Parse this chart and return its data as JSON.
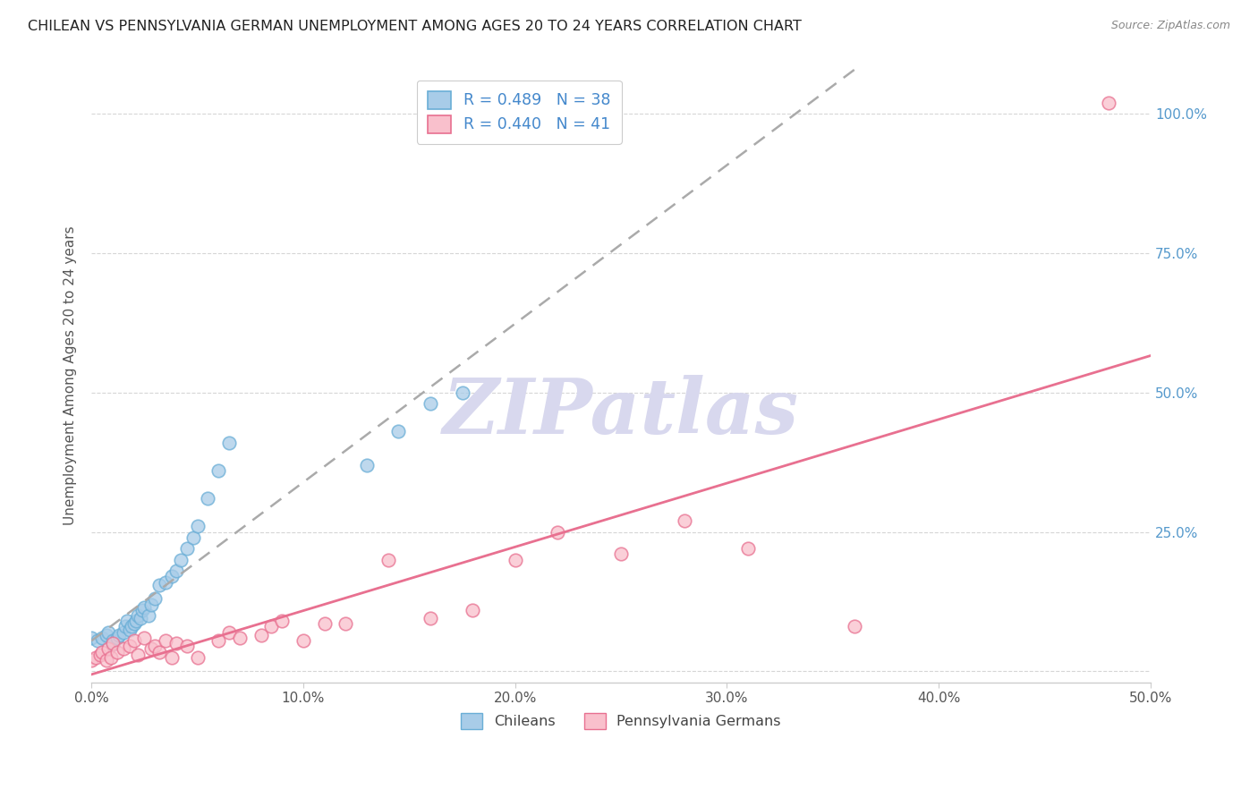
{
  "title": "CHILEAN VS PENNSYLVANIA GERMAN UNEMPLOYMENT AMONG AGES 20 TO 24 YEARS CORRELATION CHART",
  "source": "Source: ZipAtlas.com",
  "ylabel": "Unemployment Among Ages 20 to 24 years",
  "xlim": [
    0.0,
    0.5
  ],
  "ylim": [
    -0.02,
    1.08
  ],
  "xticks": [
    0.0,
    0.1,
    0.2,
    0.3,
    0.4,
    0.5
  ],
  "xtick_labels": [
    "0.0%",
    "10.0%",
    "20.0%",
    "30.0%",
    "40.0%",
    "50.0%"
  ],
  "yticks": [
    0.0,
    0.25,
    0.5,
    0.75,
    1.0
  ],
  "ytick_labels_right": [
    "",
    "25.0%",
    "50.0%",
    "75.0%",
    "100.0%"
  ],
  "legend_r1": "R = 0.489",
  "legend_n1": "N = 38",
  "legend_r2": "R = 0.440",
  "legend_n2": "N = 41",
  "color_chileans": "#a8cce8",
  "color_pennger": "#f9c0cc",
  "color_trendline_chileans": "#aaaaaa",
  "color_trendline_pennger": "#e87090",
  "watermark": "ZIPatlas",
  "watermark_color": "#d8d8ee",
  "chileans_x": [
    0.0,
    0.003,
    0.005,
    0.007,
    0.008,
    0.01,
    0.01,
    0.012,
    0.013,
    0.015,
    0.016,
    0.017,
    0.018,
    0.019,
    0.02,
    0.021,
    0.022,
    0.023,
    0.024,
    0.025,
    0.027,
    0.028,
    0.03,
    0.032,
    0.035,
    0.038,
    0.04,
    0.042,
    0.045,
    0.048,
    0.05,
    0.055,
    0.06,
    0.065,
    0.13,
    0.145,
    0.16,
    0.175
  ],
  "chileans_y": [
    0.06,
    0.055,
    0.06,
    0.065,
    0.07,
    0.048,
    0.055,
    0.06,
    0.065,
    0.07,
    0.08,
    0.09,
    0.075,
    0.08,
    0.085,
    0.09,
    0.1,
    0.095,
    0.11,
    0.115,
    0.1,
    0.12,
    0.13,
    0.155,
    0.16,
    0.17,
    0.18,
    0.2,
    0.22,
    0.24,
    0.26,
    0.31,
    0.36,
    0.41,
    0.37,
    0.43,
    0.48,
    0.5
  ],
  "pennger_x": [
    0.0,
    0.002,
    0.004,
    0.005,
    0.007,
    0.008,
    0.009,
    0.01,
    0.012,
    0.015,
    0.018,
    0.02,
    0.022,
    0.025,
    0.028,
    0.03,
    0.032,
    0.035,
    0.038,
    0.04,
    0.045,
    0.05,
    0.06,
    0.065,
    0.07,
    0.08,
    0.085,
    0.09,
    0.1,
    0.11,
    0.12,
    0.14,
    0.16,
    0.18,
    0.2,
    0.22,
    0.25,
    0.28,
    0.31,
    0.36,
    0.48
  ],
  "pennger_y": [
    0.02,
    0.025,
    0.03,
    0.035,
    0.02,
    0.04,
    0.025,
    0.05,
    0.035,
    0.04,
    0.045,
    0.055,
    0.03,
    0.06,
    0.04,
    0.045,
    0.035,
    0.055,
    0.025,
    0.05,
    0.045,
    0.025,
    0.055,
    0.07,
    0.06,
    0.065,
    0.08,
    0.09,
    0.055,
    0.085,
    0.085,
    0.2,
    0.095,
    0.11,
    0.2,
    0.25,
    0.21,
    0.27,
    0.22,
    0.08,
    1.02
  ]
}
